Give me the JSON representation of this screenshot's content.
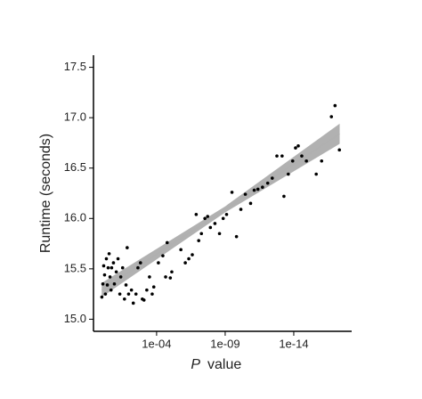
{
  "chart_data": {
    "type": "scatter",
    "x_label_italic": "P",
    "x_label": "value",
    "y_label": "Runtime (seconds)",
    "x_scale": "log",
    "xlim": [
      4,
      6e-19
    ],
    "ylim": [
      14.88,
      17.62
    ],
    "xticks": [
      {
        "value": 0.0001,
        "label": "1e-04"
      },
      {
        "value": 1e-09,
        "label": "1e-09"
      },
      {
        "value": 1e-14,
        "label": "1e-14"
      }
    ],
    "yticks": [
      {
        "value": 15.0,
        "label": "15.0"
      },
      {
        "value": 15.5,
        "label": "15.5"
      },
      {
        "value": 16.0,
        "label": "16.0"
      },
      {
        "value": 16.5,
        "label": "16.5"
      },
      {
        "value": 17.0,
        "label": "17.0"
      },
      {
        "value": 17.5,
        "label": "17.5"
      }
    ],
    "color": "#000000",
    "x": [
      0.98,
      0.83,
      0.72,
      0.62,
      0.54,
      0.46,
      0.39,
      0.34,
      0.29,
      0.25,
      0.21,
      0.19,
      0.14,
      0.12,
      0.087,
      0.065,
      0.048,
      0.041,
      0.03,
      0.022,
      0.017,
      0.014,
      0.011,
      0.0068,
      0.005,
      0.0032,
      0.0023,
      0.0015,
      0.0011,
      0.00083,
      0.00052,
      0.00033,
      0.00021,
      0.00016,
      7.4e-05,
      3.5e-05,
      2.2e-05,
      1.7e-05,
      1e-05,
      7.8e-06,
      1.7e-06,
      8.1e-07,
      4.5e-07,
      2.5e-07,
      1.3e-07,
      8.5e-08,
      5.4e-08,
      3e-08,
      1.9e-08,
      1.2e-08,
      5.6e-09,
      2.6e-09,
      1.4e-09,
      7.9e-10,
      3.2e-10,
      1.5e-10,
      7.2e-11,
      3.4e-11,
      1.4e-11,
      7.6e-12,
      4.1e-12,
      1.9e-12,
      7.9e-13,
      3.7e-13,
      1.7e-13,
      7.1e-14,
      5.2e-14,
      2.5e-14,
      1.2e-14,
      7.4e-15,
      4.7e-15,
      2.6e-15,
      1.2e-15,
      2.3e-16,
      9.3e-17,
      1.8e-17,
      9.8e-18,
      4.7e-18
    ],
    "values": [
      15.22,
      15.35,
      15.53,
      15.44,
      15.25,
      15.6,
      15.34,
      15.51,
      15.65,
      15.42,
      15.29,
      15.51,
      15.56,
      15.35,
      15.47,
      15.6,
      15.25,
      15.42,
      15.51,
      15.2,
      15.34,
      15.71,
      15.25,
      15.29,
      15.16,
      15.25,
      15.51,
      15.56,
      15.2,
      15.19,
      15.29,
      15.42,
      15.25,
      15.32,
      15.56,
      15.63,
      15.42,
      15.76,
      15.41,
      15.47,
      15.69,
      15.56,
      15.6,
      15.64,
      16.04,
      15.78,
      15.85,
      16.0,
      16.02,
      15.91,
      15.95,
      15.85,
      16.0,
      16.04,
      16.26,
      15.82,
      16.09,
      16.24,
      16.15,
      16.28,
      16.29,
      16.31,
      16.35,
      16.4,
      16.62,
      16.62,
      16.22,
      16.44,
      16.57,
      16.7,
      16.72,
      16.62,
      16.57,
      16.44,
      16.57,
      17.01,
      17.12,
      16.68
    ],
    "fit": {
      "x": [
        1,
        1e-09,
        4.5e-18
      ],
      "y": [
        15.29,
        16.09,
        16.84
      ],
      "lower": [
        15.22,
        16.06,
        16.74
      ],
      "upper": [
        15.36,
        16.12,
        16.94
      ],
      "color": "#9e9e9e",
      "line_color": "#b0b0b0"
    }
  }
}
